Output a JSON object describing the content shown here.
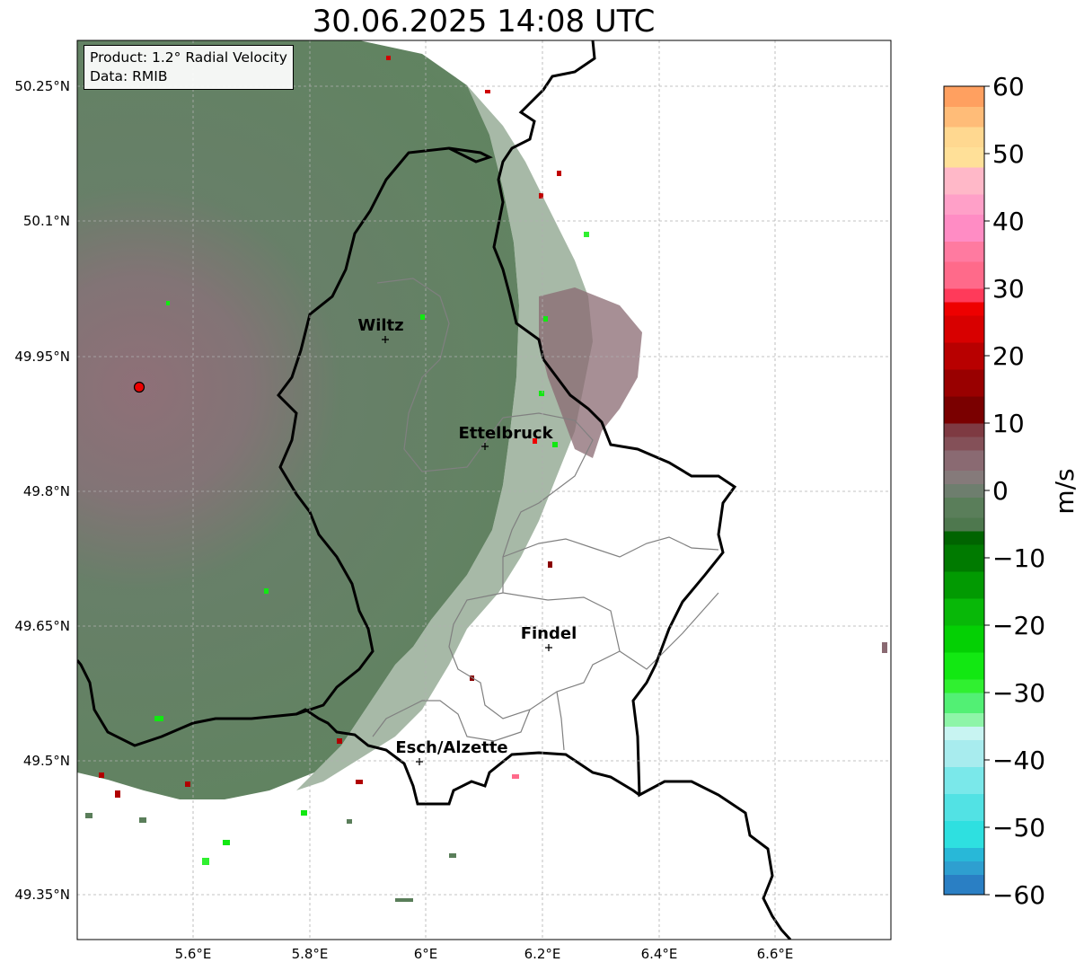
{
  "title": "30.06.2025 14:08 UTC",
  "info": {
    "product": "Product: 1.2° Radial Velocity",
    "data_source": "Data: RMIB"
  },
  "map": {
    "lon_range": [
      5.4,
      6.8
    ],
    "lat_range": [
      49.3,
      50.3
    ],
    "x_ticks": [
      "5.6°E",
      "5.8°E",
      "6°E",
      "6.2°E",
      "6.4°E",
      "6.6°E"
    ],
    "y_ticks": [
      "50.25°N",
      "50.1°N",
      "49.95°N",
      "49.8°N",
      "49.65°N",
      "49.5°N",
      "49.35°N"
    ],
    "grid": true,
    "radar_site": {
      "lon": 5.505,
      "lat": 49.914
    },
    "cities": [
      {
        "name": "Wiltz",
        "lon": 5.93,
        "lat": 49.967
      },
      {
        "name": "Ettelbruck",
        "lon": 6.1,
        "lat": 49.847
      },
      {
        "name": "Findel",
        "lon": 6.21,
        "lat": 49.626
      },
      {
        "name": "Esch/Alzette",
        "lon": 5.98,
        "lat": 49.497
      }
    ]
  },
  "colorbar": {
    "unit": "m/s",
    "range": [
      -60,
      60
    ],
    "tick_labels": [
      "60",
      "50",
      "40",
      "30",
      "20",
      "10",
      "0",
      "−10",
      "−20",
      "−30",
      "−40",
      "−50",
      "−60"
    ],
    "colors": {
      "deep_blue": "#2a7fc4",
      "cyan": "#2ee0e0",
      "light_cyan": "#a8ecee",
      "light_green": "#8ef5a8",
      "bright_green": "#12e812",
      "green": "#08b808",
      "dark_green": "#006400",
      "muted_green": "#5a7e5a",
      "muted_mauve": "#8a6a72",
      "dark_red": "#7a0000",
      "red": "#ee0000",
      "pink": "#ff6a8a",
      "light_pink": "#ffb8c8",
      "light_orange": "#ffd890",
      "orange": "#ffa060"
    }
  }
}
